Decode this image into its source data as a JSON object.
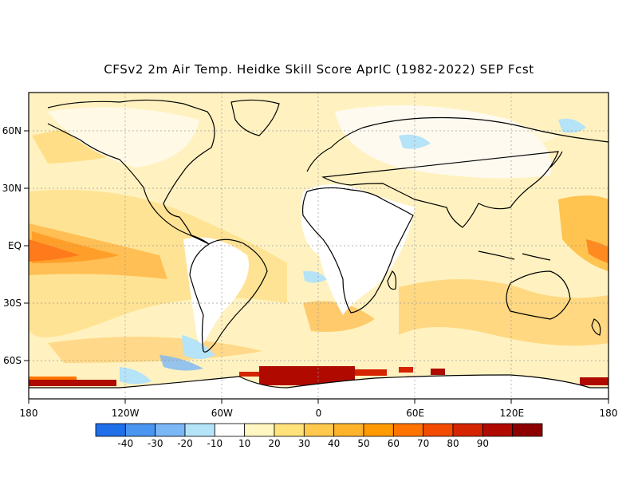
{
  "title": "CFSv2 2m Air Temp. Heidke Skill Score AprIC (1982-2022) SEP Fcst",
  "map": {
    "lat_labels": [
      {
        "lat": 60,
        "label": "60N"
      },
      {
        "lat": 30,
        "label": "30N"
      },
      {
        "lat": 0,
        "label": "EQ"
      },
      {
        "lat": -30,
        "label": "30S"
      },
      {
        "lat": -60,
        "label": "60S"
      }
    ],
    "lon_labels": [
      {
        "lon": -180,
        "label": "180"
      },
      {
        "lon": -120,
        "label": "120W"
      },
      {
        "lon": -60,
        "label": "60W"
      },
      {
        "lon": 0,
        "label": "0"
      },
      {
        "lon": 60,
        "label": "60E"
      },
      {
        "lon": 120,
        "label": "120E"
      },
      {
        "lon": 180,
        "label": "180"
      }
    ],
    "lon_range": [
      -180,
      180
    ],
    "lat_range": [
      -80,
      80
    ],
    "gridlines": true
  },
  "colorbar": {
    "colors": [
      "#1f6fe8",
      "#4a95f0",
      "#7bb6f5",
      "#b5e3f8",
      "#ffffff",
      "#fff6c2",
      "#ffe27a",
      "#ffc94d",
      "#ffb32a",
      "#ff9a00",
      "#ff7400",
      "#f24b00",
      "#d42400",
      "#b00a00",
      "#8c0000"
    ],
    "labels": [
      "-40",
      "-30",
      "-20",
      "-10",
      "10",
      "20",
      "30",
      "40",
      "50",
      "60",
      "70",
      "80",
      "90"
    ]
  }
}
